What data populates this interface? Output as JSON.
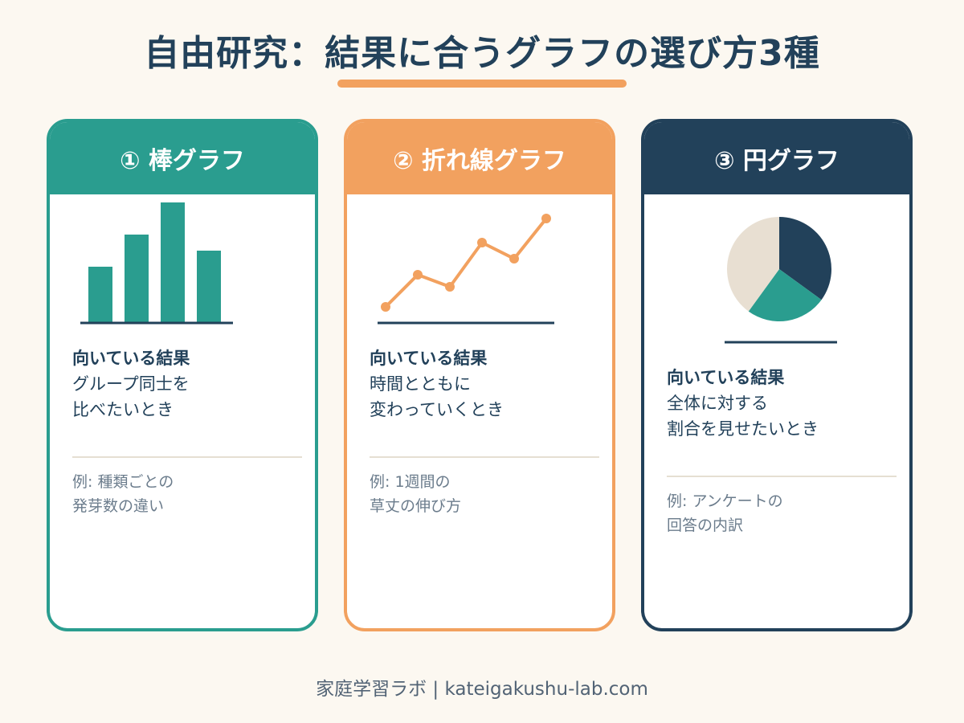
{
  "title": "自由研究：結果に合うグラフの選び方3種",
  "colors": {
    "teal": "#2a9d8f",
    "orange": "#f2a15f",
    "navy": "#22415a",
    "beige": "#e8dfd2"
  },
  "cards": [
    {
      "heading": "① 棒グラフ",
      "lead": "向いている結果",
      "desc": "グループ同士を\n比べたいとき",
      "example": "例: 種類ごとの\n発芽数の違い",
      "chart_data": {
        "type": "bar",
        "values": [
          3.5,
          5.5,
          7.5,
          4.5
        ]
      }
    },
    {
      "heading": "② 折れ線グラフ",
      "lead": "向いている結果",
      "desc": "時間とともに\n変わっていくとき",
      "example": "例: 1週間の\n草丈の伸び方",
      "chart_data": {
        "type": "line",
        "values": [
          1,
          5,
          3.5,
          9,
          7,
          12
        ]
      }
    },
    {
      "heading": "③ 円グラフ",
      "lead": "向いている結果",
      "desc": "全体に対する\n割合を見せたいとき",
      "example": "例: アンケートの\n回答の内訳",
      "chart_data": {
        "type": "pie",
        "values": [
          35,
          25,
          40
        ]
      }
    }
  ],
  "footer": "家庭学習ラボ | kateigakushu-lab.com"
}
